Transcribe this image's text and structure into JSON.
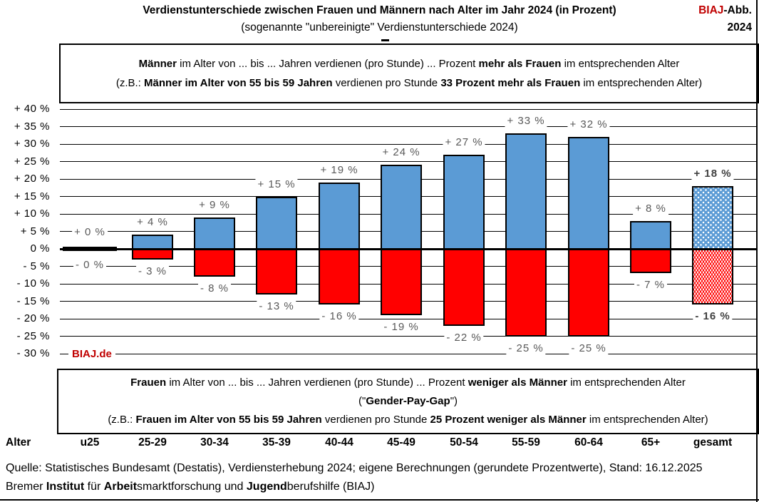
{
  "header": {
    "title": "Verdienstunterschiede zwischen Frauen und Männern nach Alter im Jahr 2024 (in Prozent)",
    "subtitle": "(sogenannte \"unbereinigte\" Verdienstunterschiede 2024)",
    "brand_red": "BIAJ",
    "brand_black": "-Abb.",
    "brand_year": "2024"
  },
  "info_box_top": {
    "line1": [
      {
        "t": "Männer",
        "b": true
      },
      {
        "t": " im Alter von ... bis ... Jahren verdienen (pro Stunde) ... Prozent "
      },
      {
        "t": "mehr als Frauen",
        "b": true
      },
      {
        "t": " im entsprechenden Alter"
      }
    ],
    "line2": [
      {
        "t": "(z.B.: "
      },
      {
        "t": "Männer im Alter von 55 bis 59 Jahren",
        "b": true
      },
      {
        "t": " verdienen pro Stunde "
      },
      {
        "t": "33 Prozent mehr als Frauen",
        "b": true
      },
      {
        "t": " im entsprechenden Alter)"
      }
    ]
  },
  "info_box_bottom": {
    "line1": [
      {
        "t": "Frauen",
        "b": true
      },
      {
        "t": " im Alter von ... bis ... Jahren verdienen (pro Stunde) ... Prozent "
      },
      {
        "t": "weniger als Männer",
        "b": true
      },
      {
        "t": " im entsprechenden Alter"
      }
    ],
    "line2": [
      {
        "t": "(\""
      },
      {
        "t": "Gender-Pay-Gap",
        "b": true
      },
      {
        "t": "\")"
      }
    ],
    "line3": [
      {
        "t": "(z.B.: "
      },
      {
        "t": "Frauen im Alter von 55 bis 59 Jahren",
        "b": true
      },
      {
        "t": " verdienen pro Stunde "
      },
      {
        "t": "25 Prozent weniger als Männer",
        "b": true
      },
      {
        "t": " im entsprechenden Alter)"
      }
    ]
  },
  "axis": {
    "row_label": "Alter"
  },
  "watermark": "BIAJ.de",
  "footer": {
    "line1": "Quelle: Statistisches Bundesamt (Destatis), Verdiensterhebung 2024; eigene Berechnungen (gerundete Prozentwerte), Stand: 16.12.2025",
    "line2": [
      {
        "t": "Bremer "
      },
      {
        "t": "Institut",
        "b": true
      },
      {
        "t": " für "
      },
      {
        "t": "Arbeit",
        "b": true
      },
      {
        "t": "smarktforschung und "
      },
      {
        "t": "Jugend",
        "b": true
      },
      {
        "t": "berufshilfe (BIAJ)"
      }
    ]
  },
  "colors": {
    "male_bar": "#5B9BD5",
    "female_bar": "#FF0000",
    "zero_bar": "#000000",
    "label_gray": "#595959",
    "brand_red": "#C00000",
    "grid": "#000000"
  },
  "chart_data": {
    "type": "bar",
    "title": "Verdienstunterschiede zwischen Frauen und Männern nach Alter im Jahr 2024 (in Prozent)",
    "subtitle": "(sogenannte \"unbereinigte\" Verdienstunterschiede 2024)",
    "categories": [
      "u25",
      "25-29",
      "30-34",
      "35-39",
      "40-44",
      "45-49",
      "50-54",
      "55-59",
      "60-64",
      "65+",
      "gesamt"
    ],
    "series": [
      {
        "name": "Männer verdienen mehr als Frauen",
        "color": "#5B9BD5",
        "values": [
          0,
          4,
          9,
          15,
          19,
          24,
          27,
          33,
          32,
          8,
          18
        ]
      },
      {
        "name": "Frauen verdienen weniger als Männer (Gender-Pay-Gap)",
        "color": "#FF0000",
        "values": [
          0,
          -3,
          -8,
          -13,
          -16,
          -19,
          -22,
          -25,
          -25,
          -7,
          -16
        ]
      }
    ],
    "labels_above": [
      "+ 0 %",
      "+ 4 %",
      "+ 9 %",
      "+ 15 %",
      "+ 19 %",
      "+ 24 %",
      "+ 27 %",
      "+ 33 %",
      "+ 32 %",
      "+ 8 %",
      "+ 18 %"
    ],
    "labels_below": [
      "- 0 %",
      "- 3 %",
      "- 8 %",
      "- 13 %",
      "- 16 %",
      "- 19 %",
      "- 22 %",
      "- 25 %",
      "- 25 %",
      "- 7 %",
      "- 16 %"
    ],
    "ylim": [
      -30,
      40
    ],
    "ytick_step": 5,
    "ytick_labels": [
      "+ 40 %",
      "+ 35 %",
      "+ 30 %",
      "+ 25 %",
      "+ 20 %",
      "+ 15 %",
      "+ 10 %",
      "+ 5 %",
      "0 %",
      "- 5 %",
      "- 10 %",
      "- 15 %",
      "- 20 %",
      "- 25 %",
      "- 30 %"
    ],
    "grid": true,
    "legend": "none",
    "pattern_category": "gesamt",
    "xaxis_row_label": "Alter"
  }
}
